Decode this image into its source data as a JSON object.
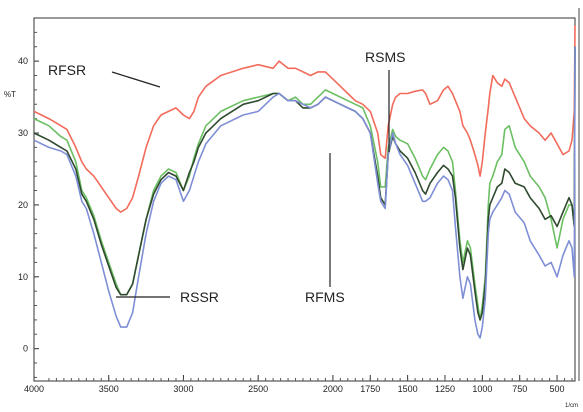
{
  "chart_data": {
    "type": "line",
    "title": "",
    "xlabel": "",
    "ylabel": "%T",
    "x_unit_label": "1/cm",
    "xlim": [
      4000,
      380
    ],
    "ylim": [
      -4.5,
      46
    ],
    "x_ticks": [
      4000,
      3500,
      3000,
      2500,
      2000,
      1750,
      1500,
      1250,
      1000,
      750,
      500
    ],
    "y_ticks": [
      0,
      10,
      20,
      30,
      40
    ],
    "grid": false,
    "legend": "inline-annotations",
    "series": [
      {
        "name": "RFSR",
        "color": "#f26b5b",
        "x": [
          4000,
          3900,
          3820,
          3780,
          3720,
          3680,
          3650,
          3600,
          3550,
          3500,
          3450,
          3420,
          3380,
          3340,
          3300,
          3250,
          3200,
          3150,
          3100,
          3050,
          3000,
          2960,
          2930,
          2900,
          2850,
          2750,
          2600,
          2500,
          2400,
          2360,
          2330,
          2300,
          2250,
          2200,
          2150,
          2100,
          2050,
          2000,
          1950,
          1900,
          1850,
          1800,
          1750,
          1700,
          1680,
          1650,
          1630,
          1600,
          1580,
          1550,
          1500,
          1450,
          1400,
          1380,
          1350,
          1300,
          1260,
          1230,
          1200,
          1180,
          1150,
          1130,
          1100,
          1080,
          1050,
          1030,
          1015,
          1000,
          980,
          960,
          950,
          930,
          900,
          870,
          850,
          820,
          780,
          720,
          680,
          620,
          580,
          540,
          500,
          460,
          420,
          400,
          385,
          380
        ],
        "y": [
          33,
          32,
          31,
          30.5,
          28,
          26,
          25,
          24,
          22.5,
          21,
          19.5,
          19,
          19.5,
          21,
          24,
          28,
          31,
          32.5,
          33,
          33.5,
          32.5,
          32,
          33,
          35,
          36.5,
          38,
          39,
          39.5,
          39,
          40,
          39.5,
          39,
          39,
          38.5,
          38,
          38.5,
          38.5,
          37.5,
          36.5,
          35.5,
          34.5,
          34,
          33,
          30,
          27,
          26.5,
          31,
          34,
          35,
          35.5,
          35.5,
          35.8,
          36,
          35.5,
          34,
          34.5,
          36,
          36.5,
          35.5,
          34.5,
          33,
          31,
          30,
          29,
          27,
          25.5,
          24,
          26,
          30,
          33.5,
          35.5,
          38,
          37,
          36.5,
          37.5,
          37,
          35,
          32,
          31,
          30,
          29,
          30,
          28.5,
          27,
          27.5,
          29,
          33,
          45
        ]
      },
      {
        "name": "RSMS",
        "color": "#6cbf63",
        "x": [
          4000,
          3900,
          3820,
          3780,
          3720,
          3680,
          3650,
          3600,
          3550,
          3500,
          3450,
          3420,
          3380,
          3340,
          3300,
          3250,
          3200,
          3150,
          3100,
          3050,
          3000,
          2960,
          2930,
          2900,
          2850,
          2750,
          2600,
          2500,
          2400,
          2360,
          2330,
          2300,
          2250,
          2200,
          2150,
          2100,
          2050,
          2000,
          1950,
          1900,
          1850,
          1800,
          1750,
          1700,
          1680,
          1650,
          1630,
          1600,
          1580,
          1550,
          1500,
          1450,
          1400,
          1380,
          1350,
          1300,
          1260,
          1230,
          1200,
          1180,
          1150,
          1130,
          1100,
          1080,
          1050,
          1030,
          1015,
          1000,
          980,
          960,
          950,
          930,
          900,
          870,
          850,
          820,
          780,
          720,
          680,
          620,
          580,
          540,
          500,
          460,
          420,
          400,
          385,
          380
        ],
        "y": [
          32,
          31,
          29.5,
          29,
          26,
          22,
          21,
          18.5,
          15,
          12,
          9,
          7.5,
          7.5,
          9,
          13,
          18,
          22,
          24,
          25,
          24.5,
          22,
          24,
          26.5,
          28.5,
          31,
          33,
          34.5,
          35,
          35.5,
          35.5,
          35,
          34.5,
          35,
          34,
          34,
          35,
          36,
          35.5,
          35,
          34.5,
          34,
          33.5,
          31,
          26,
          22.5,
          22.5,
          28,
          30.5,
          29.5,
          29,
          28.5,
          26.5,
          24,
          23.5,
          25,
          27,
          28,
          27.5,
          26,
          22,
          15,
          12,
          15,
          14,
          9,
          6,
          4,
          6,
          10,
          20,
          23,
          24,
          26,
          27,
          30.5,
          31,
          28,
          26,
          24,
          22.5,
          21,
          18,
          14,
          18,
          20,
          20,
          17,
          42
        ]
      },
      {
        "name": "RFMS",
        "color": "#2f4a2f",
        "x": [
          4000,
          3900,
          3820,
          3780,
          3720,
          3680,
          3650,
          3600,
          3550,
          3500,
          3450,
          3420,
          3380,
          3340,
          3300,
          3250,
          3200,
          3150,
          3100,
          3050,
          3000,
          2960,
          2930,
          2900,
          2850,
          2750,
          2600,
          2500,
          2400,
          2360,
          2330,
          2300,
          2250,
          2200,
          2150,
          2100,
          2050,
          2000,
          1950,
          1900,
          1850,
          1800,
          1750,
          1700,
          1680,
          1650,
          1630,
          1600,
          1580,
          1550,
          1500,
          1450,
          1400,
          1380,
          1350,
          1300,
          1260,
          1230,
          1200,
          1180,
          1150,
          1130,
          1100,
          1080,
          1050,
          1030,
          1015,
          1000,
          980,
          960,
          950,
          930,
          900,
          870,
          850,
          820,
          780,
          720,
          680,
          620,
          580,
          540,
          500,
          460,
          420,
          400,
          385,
          380
        ],
        "y": [
          30,
          29,
          28,
          27.5,
          25,
          21.5,
          20.5,
          18,
          14.5,
          11.5,
          8.5,
          7.5,
          7.5,
          9,
          13,
          18,
          21.5,
          23.5,
          24.5,
          24,
          22,
          24.5,
          26,
          28,
          30,
          32,
          34,
          34.5,
          35.5,
          35.5,
          35,
          34.5,
          34.5,
          33.5,
          33.5,
          34,
          35,
          34.5,
          34,
          33.5,
          33,
          32,
          30,
          24,
          21,
          20,
          27,
          29.5,
          28.5,
          27.5,
          26.5,
          24.5,
          22,
          21.5,
          23,
          24.5,
          25.5,
          25,
          24,
          21,
          14,
          11,
          14,
          13,
          8,
          5,
          4,
          5,
          9,
          18,
          20,
          21,
          22.5,
          23,
          25,
          24.5,
          23,
          22.5,
          21,
          19.5,
          18,
          18.5,
          17,
          19,
          21,
          20,
          17,
          42
        ]
      },
      {
        "name": "RSSR",
        "color": "#7f8fd6",
        "x": [
          4000,
          3900,
          3820,
          3780,
          3720,
          3680,
          3650,
          3600,
          3550,
          3500,
          3450,
          3420,
          3380,
          3340,
          3300,
          3250,
          3200,
          3150,
          3100,
          3050,
          3000,
          2960,
          2930,
          2900,
          2850,
          2750,
          2600,
          2500,
          2400,
          2360,
          2330,
          2300,
          2250,
          2200,
          2150,
          2100,
          2050,
          2000,
          1950,
          1900,
          1850,
          1800,
          1750,
          1700,
          1680,
          1650,
          1630,
          1600,
          1580,
          1550,
          1500,
          1450,
          1400,
          1380,
          1350,
          1300,
          1260,
          1230,
          1200,
          1180,
          1150,
          1130,
          1100,
          1080,
          1050,
          1030,
          1015,
          1000,
          980,
          960,
          950,
          930,
          900,
          870,
          850,
          820,
          780,
          720,
          680,
          620,
          580,
          540,
          500,
          460,
          420,
          400,
          385,
          380
        ],
        "y": [
          29,
          28,
          27.5,
          27,
          24,
          20.5,
          19.5,
          16,
          12,
          8,
          4.5,
          3,
          3,
          5,
          10,
          16,
          20.5,
          23,
          24,
          23.5,
          20.5,
          22,
          24,
          26,
          28.5,
          31,
          32.5,
          33,
          35,
          35.5,
          35,
          34.5,
          34.5,
          34,
          33.5,
          34,
          35,
          34.5,
          34,
          33.5,
          33,
          32,
          30,
          23,
          20.5,
          19.5,
          27,
          30,
          28.5,
          27,
          25.5,
          23,
          20.5,
          20.5,
          21,
          23,
          24,
          23.5,
          22,
          17,
          10,
          7,
          10,
          9,
          4,
          2,
          1.5,
          3,
          7,
          16,
          18,
          19,
          20,
          21,
          22,
          21.5,
          19,
          17.5,
          15,
          13,
          11.5,
          12,
          10,
          13,
          15,
          14,
          10,
          42
        ]
      }
    ],
    "annotations": [
      {
        "text": "RFSR",
        "series": "RFSR"
      },
      {
        "text": "RSMS",
        "series": "RSMS"
      },
      {
        "text": "RSSR",
        "series": "RSSR"
      },
      {
        "text": "RFMS",
        "series": "RFMS"
      }
    ]
  }
}
